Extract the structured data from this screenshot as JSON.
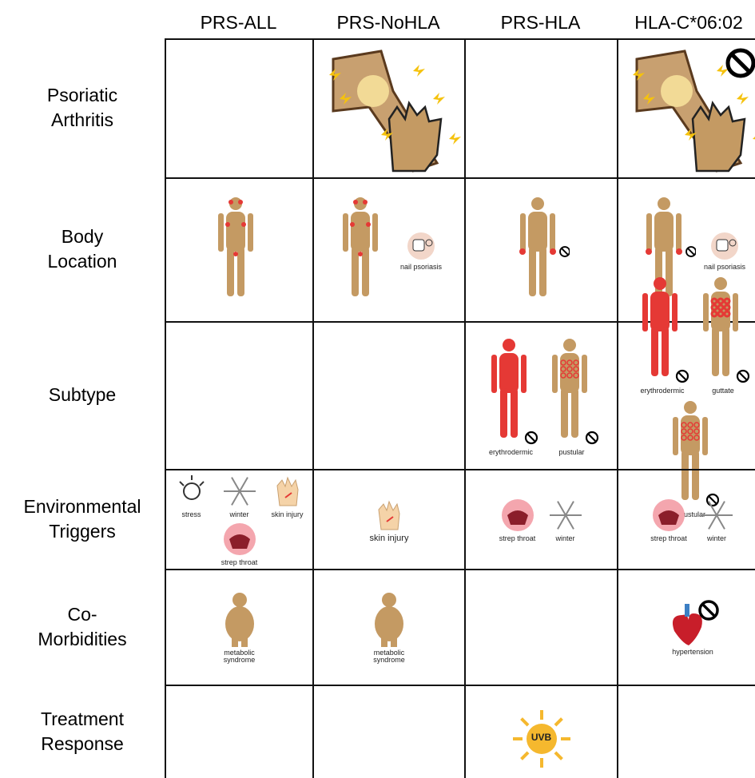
{
  "columns": [
    "PRS-ALL",
    "PRS-NoHLA",
    "PRS-HLA",
    "HLA-C*06:02"
  ],
  "rows": [
    {
      "label": "Psoriatic Arthritis",
      "cells": [
        [],
        [],
        [],
        []
      ]
    },
    {
      "label": "Body Location",
      "cells": [
        [],
        [
          "nail psoriasis"
        ],
        [],
        [
          "nail psoriasis"
        ]
      ]
    },
    {
      "label": "Subtype",
      "cells": [
        [],
        [],
        [
          "erythrodermic",
          "pustular"
        ],
        [
          "erythrodermic",
          "guttate",
          "pustular"
        ]
      ]
    },
    {
      "label": "Environmental Triggers",
      "cells": [
        [
          "stress",
          "winter",
          "skin injury",
          "strep throat"
        ],
        [
          "skin injury"
        ],
        [
          "strep throat",
          "winter"
        ],
        [
          "strep throat",
          "winter"
        ]
      ]
    },
    {
      "label": "Co-Morbidities",
      "cells": [
        [
          "metabolic syndrome"
        ],
        [
          "metabolic syndrome"
        ],
        [],
        [
          "hypertension"
        ]
      ]
    },
    {
      "label": "Treatment Response",
      "cells": [
        [],
        [],
        [
          "UVB"
        ],
        []
      ]
    }
  ]
}
